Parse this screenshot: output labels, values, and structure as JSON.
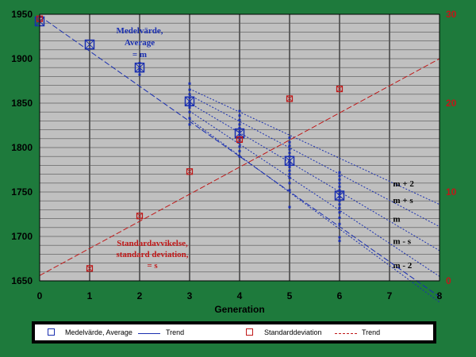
{
  "chart_data": {
    "type": "scatter",
    "xlabel": "Generation",
    "x_ticks": [
      "0",
      "1",
      "2",
      "3",
      "4",
      "5",
      "6",
      "7",
      "8"
    ],
    "y_left_ticks": [
      "1650",
      "1700",
      "1750",
      "1800",
      "1850",
      "1900",
      "1950"
    ],
    "y_right_ticks": [
      "0",
      "10",
      "20",
      "30"
    ],
    "xlim": [
      0,
      8
    ],
    "ylim_left": [
      1650,
      1950
    ],
    "ylim_right": [
      0,
      30
    ],
    "grid": true,
    "legend_placement": "bottom",
    "colors": {
      "average": "#1a2fb0",
      "stddev": "#c01818",
      "background": "#c0c0c0",
      "frame": "#1e7a3c",
      "points": "#1a2fb0",
      "bands": "#1a2fb0"
    },
    "series": [
      {
        "name": "Medelvärde, Average",
        "axis": "left",
        "x": [
          0,
          1,
          2,
          3,
          4,
          5,
          6
        ],
        "y": [
          1942,
          1916,
          1890,
          1852,
          1816,
          1785,
          1746
        ]
      },
      {
        "name": "Standarddeviation",
        "axis": "right",
        "x": [
          0,
          1,
          2,
          3,
          4,
          5,
          6
        ],
        "y": [
          29.5,
          1.4,
          7.3,
          12.3,
          15.9,
          20.5,
          21.6
        ]
      }
    ],
    "trend_average": {
      "from": [
        0,
        1948
      ],
      "to": [
        8,
        1632
      ]
    },
    "trend_stddev": {
      "from": [
        0,
        0.6
      ],
      "to": [
        8,
        25
      ]
    },
    "bands": [
      {
        "label": "m + 2",
        "from": [
          3,
          1866
        ],
        "to": [
          8,
          1736
        ]
      },
      {
        "label": "m + s",
        "from": [
          3,
          1859
        ],
        "to": [
          8,
          1711
        ]
      },
      {
        "label": "m",
        "from": [
          3,
          1850
        ],
        "to": [
          8,
          1684
        ]
      },
      {
        "label": "m - s",
        "from": [
          3,
          1841
        ],
        "to": [
          8,
          1655
        ]
      },
      {
        "label": "m - 2",
        "from": [
          3,
          1832
        ],
        "to": [
          8,
          1626
        ]
      }
    ],
    "individuals": [
      {
        "x": 2,
        "y": [
          1895,
          1891,
          1887,
          1882
        ]
      },
      {
        "x": 3,
        "y": [
          1872,
          1865,
          1860,
          1856,
          1852,
          1849,
          1845,
          1840,
          1833,
          1826
        ]
      },
      {
        "x": 4,
        "y": [
          1841,
          1836,
          1831,
          1826,
          1822,
          1818,
          1814,
          1810,
          1806,
          1801,
          1796,
          1790
        ]
      },
      {
        "x": 5,
        "y": [
          1811,
          1806,
          1802,
          1798,
          1794,
          1790,
          1786,
          1782,
          1778,
          1774,
          1770,
          1766,
          1760,
          1752,
          1733
        ]
      },
      {
        "x": 6,
        "y": [
          1772,
          1768,
          1764,
          1760,
          1756,
          1752,
          1748,
          1744,
          1740,
          1736,
          1732,
          1727,
          1721,
          1714,
          1699,
          1695
        ]
      }
    ],
    "annotations": {
      "average": [
        "Medelvärde,",
        "Average",
        "= m"
      ],
      "stddev": [
        "Standardavvikelse,",
        "standard deviation,",
        "= s"
      ]
    },
    "legend": [
      {
        "label": "Medelvärde, Average"
      },
      {
        "label": "Trend"
      },
      {
        "label": "Standarddeviation"
      },
      {
        "label": "Trend"
      }
    ]
  }
}
